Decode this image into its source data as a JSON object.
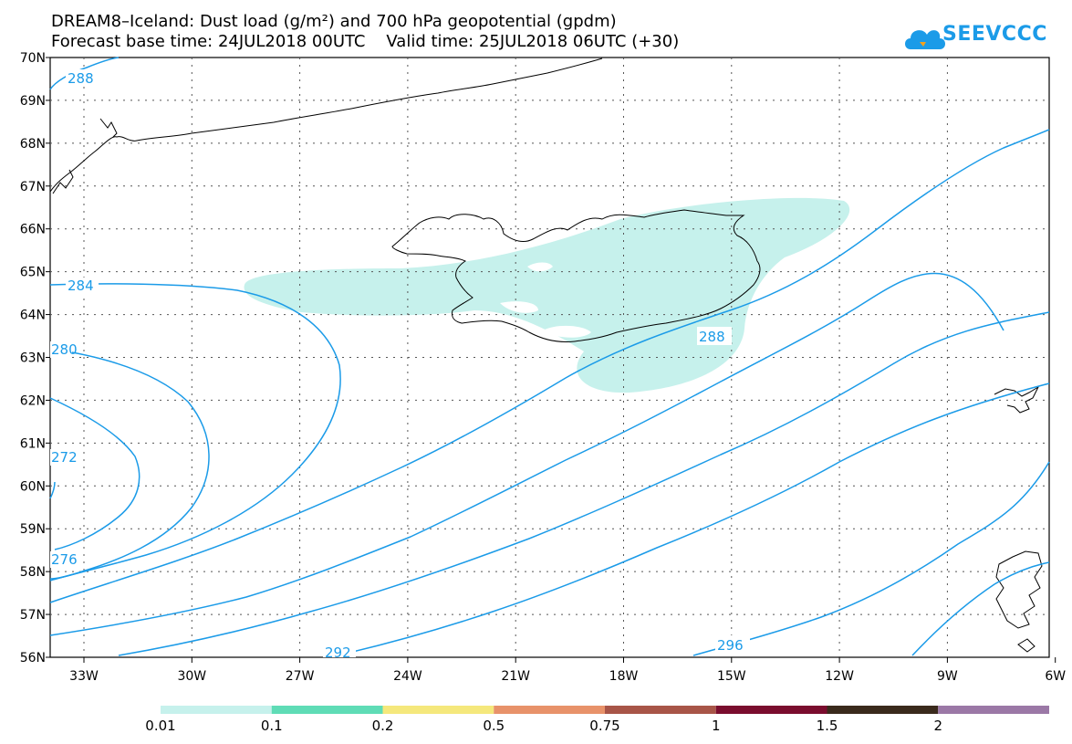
{
  "title_line1": "DREAM8–Iceland: Dust load (g/m²) and 700 hPa geopotential (gpdm)",
  "title_line2": "Forecast base time: 24JUL2018 00UTC    Valid time: 25JUL2018 06UTC (+30)",
  "logo_text": "SEEVCCC",
  "lat_labels": [
    "70N",
    "69N",
    "68N",
    "67N",
    "66N",
    "65N",
    "64N",
    "63N",
    "62N",
    "61N",
    "60N",
    "59N",
    "58N",
    "57N",
    "56N"
  ],
  "lon_labels": [
    "33W",
    "30W",
    "27W",
    "24W",
    "21W",
    "18W",
    "15W",
    "12W",
    "9W",
    "6W"
  ],
  "contour_labels": {
    "c288_nw": "288",
    "c284": "284",
    "c280": "280",
    "c272": "272",
    "c276": "276",
    "c288": "288",
    "c292": "292",
    "c296": "296"
  },
  "colorbar": {
    "labels": [
      "0.01",
      "0.1",
      "0.2",
      "0.5",
      "0.75",
      "1",
      "1.5",
      "2"
    ],
    "colors": [
      "#c6f1ec",
      "#5fdcb6",
      "#f5e87c",
      "#e8926a",
      "#a85548",
      "#7a0d2e",
      "#3a2a1c",
      "#9b78a6"
    ]
  },
  "colors": {
    "contour": "#1b9be8",
    "dust_low": "#c6f1ec",
    "coast": "#000000",
    "grid": "#666666"
  }
}
